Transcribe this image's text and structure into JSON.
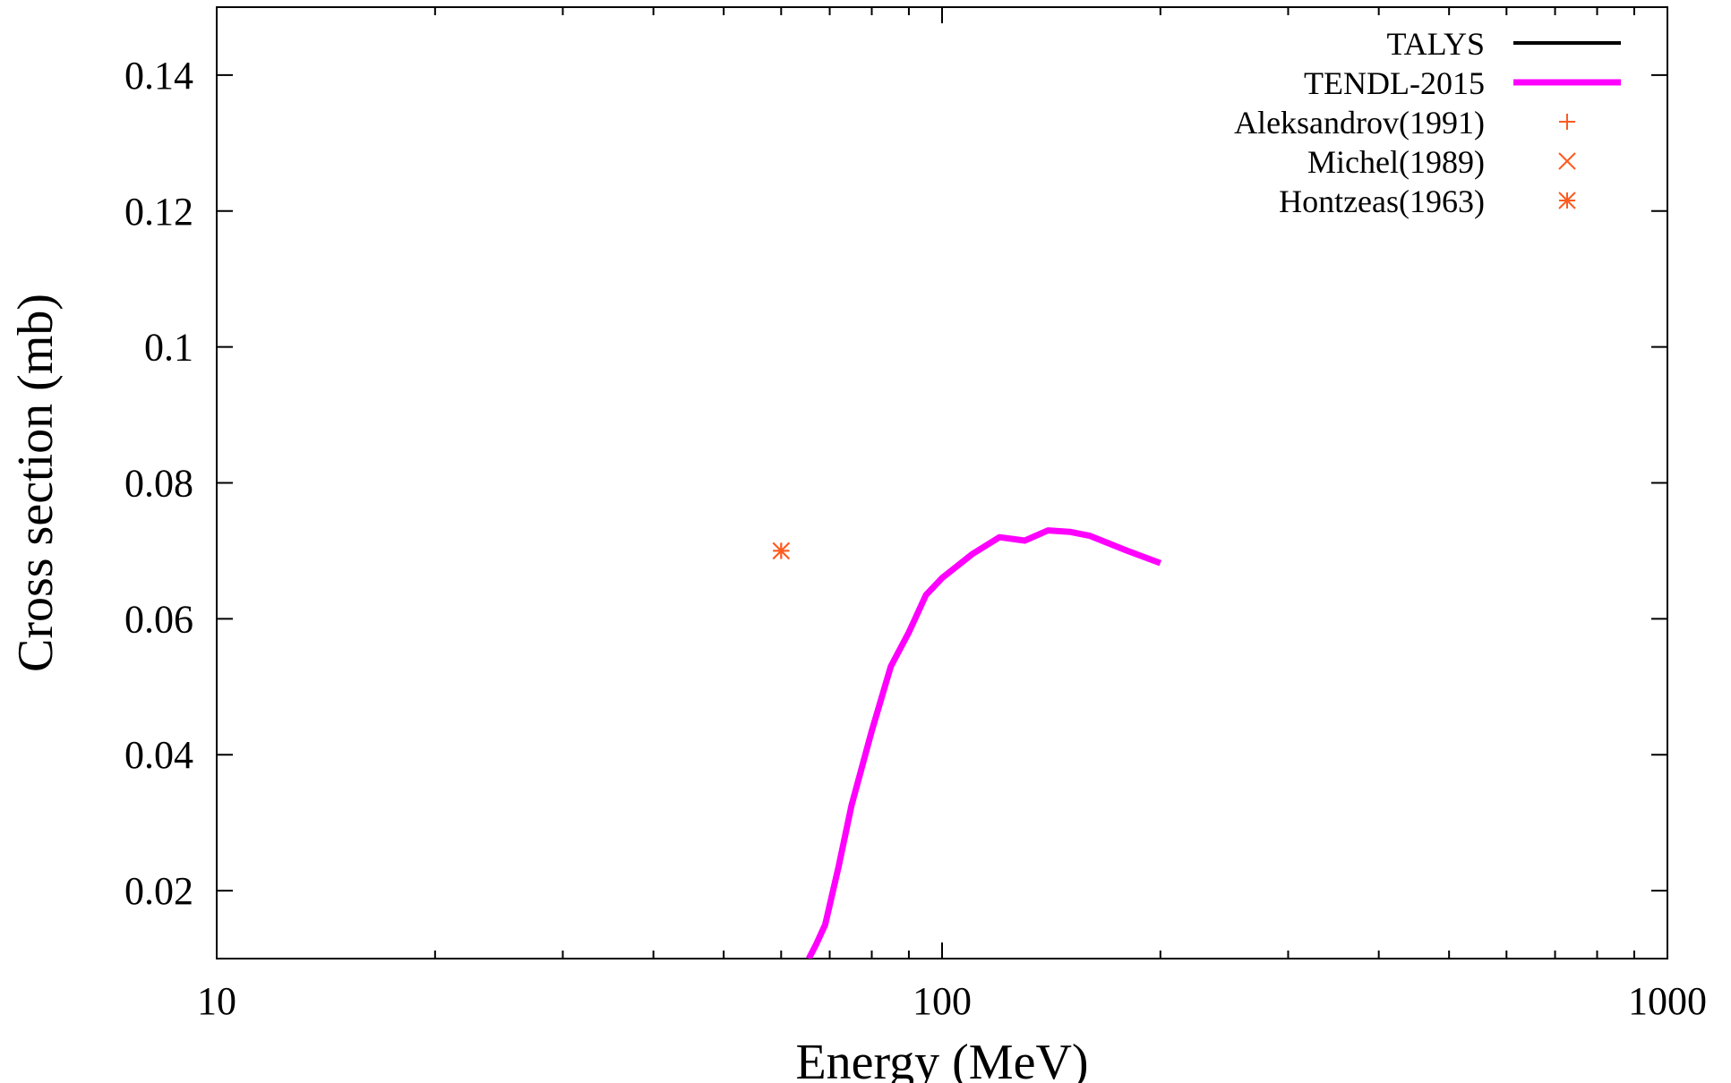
{
  "chart_data": {
    "type": "line",
    "xlabel": "Energy (MeV)",
    "ylabel": "Cross section (mb)",
    "x_scale": "log",
    "xlim": [
      10,
      1000
    ],
    "ylim": [
      0.01,
      0.15
    ],
    "x_ticks": [
      {
        "value": 10,
        "label": "10"
      },
      {
        "value": 100,
        "label": "100"
      },
      {
        "value": 1000,
        "label": "1000"
      }
    ],
    "y_ticks": [
      {
        "value": 0.02,
        "label": "0.02"
      },
      {
        "value": 0.04,
        "label": "0.04"
      },
      {
        "value": 0.06,
        "label": "0.06"
      },
      {
        "value": 0.08,
        "label": "0.08"
      },
      {
        "value": 0.1,
        "label": "0.1"
      },
      {
        "value": 0.12,
        "label": "0.12"
      },
      {
        "value": 0.14,
        "label": "0.14"
      }
    ],
    "legend_position": "top-right",
    "series": [
      {
        "name": "TALYS",
        "kind": "line",
        "color": "#000000",
        "points": []
      },
      {
        "name": "TENDL-2015",
        "kind": "line",
        "color": "#ff00ff",
        "points": [
          {
            "x": 65.5,
            "y": 0.01
          },
          {
            "x": 67,
            "y": 0.012
          },
          {
            "x": 69,
            "y": 0.015
          },
          {
            "x": 72,
            "y": 0.0235
          },
          {
            "x": 75,
            "y": 0.0325
          },
          {
            "x": 80,
            "y": 0.0435
          },
          {
            "x": 85,
            "y": 0.053
          },
          {
            "x": 90,
            "y": 0.058
          },
          {
            "x": 95,
            "y": 0.0635
          },
          {
            "x": 100,
            "y": 0.066
          },
          {
            "x": 110,
            "y": 0.0695
          },
          {
            "x": 120,
            "y": 0.072
          },
          {
            "x": 130,
            "y": 0.0715
          },
          {
            "x": 140,
            "y": 0.073
          },
          {
            "x": 150,
            "y": 0.0728
          },
          {
            "x": 160,
            "y": 0.0722
          },
          {
            "x": 180,
            "y": 0.07
          },
          {
            "x": 200,
            "y": 0.0682
          }
        ]
      },
      {
        "name": "Aleksandrov(1991)",
        "kind": "marker",
        "marker": "plus",
        "color": "#ff5a1f",
        "points": [
          {
            "x": 60,
            "y": 0.07
          }
        ]
      },
      {
        "name": "Michel(1989)",
        "kind": "marker",
        "marker": "cross",
        "color": "#ff5a1f",
        "points": [
          {
            "x": 60,
            "y": 0.07
          }
        ]
      },
      {
        "name": "Hontzeas(1963)",
        "kind": "marker",
        "marker": "star",
        "color": "#ff5a1f",
        "points": [
          {
            "x": 60,
            "y": 0.07
          }
        ]
      }
    ]
  }
}
